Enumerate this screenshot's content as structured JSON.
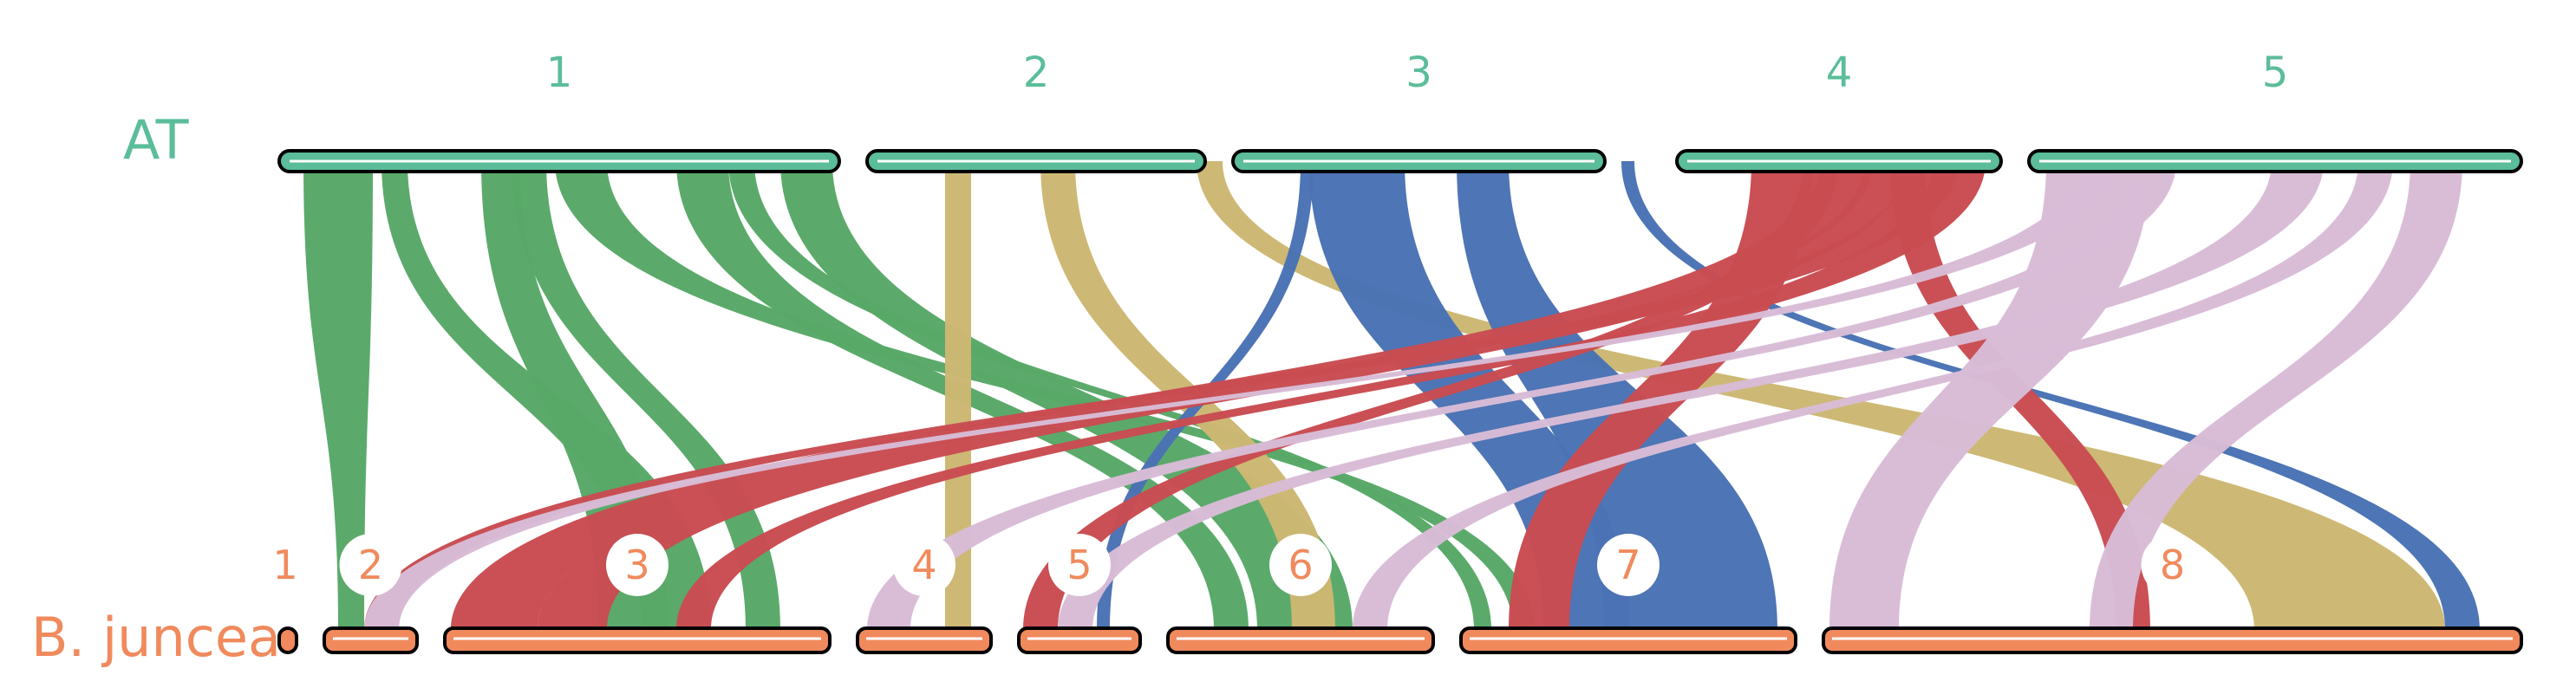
{
  "genomes": {
    "top": {
      "label": "AT",
      "color": "#5bbd99",
      "chromosomes": [
        {
          "id": "1",
          "label": "1"
        },
        {
          "id": "2",
          "label": "2"
        },
        {
          "id": "3",
          "label": "3"
        },
        {
          "id": "4",
          "label": "4"
        },
        {
          "id": "5",
          "label": "5"
        }
      ]
    },
    "bottom": {
      "label": "B. juncea",
      "color": "#f08a5d",
      "chromosomes": [
        {
          "id": "1",
          "label": "1"
        },
        {
          "id": "2",
          "label": "2"
        },
        {
          "id": "3",
          "label": "3"
        },
        {
          "id": "4",
          "label": "4"
        },
        {
          "id": "5",
          "label": "5"
        },
        {
          "id": "6",
          "label": "6"
        },
        {
          "id": "7",
          "label": "7"
        },
        {
          "id": "8",
          "label": "8"
        }
      ]
    }
  },
  "link_colors": {
    "1": "#58a868",
    "2": "#ccb872",
    "3": "#4a72b4",
    "4": "#c94d52",
    "5": "#d8bcd6"
  },
  "links": [
    {
      "source": "1",
      "target": "2"
    },
    {
      "source": "1",
      "target": "3"
    },
    {
      "source": "1",
      "target": "3"
    },
    {
      "source": "1",
      "target": "3"
    },
    {
      "source": "1",
      "target": "6"
    },
    {
      "source": "1",
      "target": "6"
    },
    {
      "source": "1",
      "target": "7"
    },
    {
      "source": "1",
      "target": "7"
    },
    {
      "source": "2",
      "target": "4"
    },
    {
      "source": "2",
      "target": "6"
    },
    {
      "source": "2",
      "target": "8"
    },
    {
      "source": "3",
      "target": "5"
    },
    {
      "source": "3",
      "target": "7"
    },
    {
      "source": "3",
      "target": "7"
    },
    {
      "source": "3",
      "target": "8"
    },
    {
      "source": "4",
      "target": "2"
    },
    {
      "source": "4",
      "target": "3"
    },
    {
      "source": "4",
      "target": "3"
    },
    {
      "source": "4",
      "target": "3"
    },
    {
      "source": "4",
      "target": "5"
    },
    {
      "source": "4",
      "target": "7"
    },
    {
      "source": "4",
      "target": "8"
    },
    {
      "source": "5",
      "target": "2"
    },
    {
      "source": "5",
      "target": "4"
    },
    {
      "source": "5",
      "target": "5"
    },
    {
      "source": "5",
      "target": "6"
    },
    {
      "source": "5",
      "target": "8"
    },
    {
      "source": "5",
      "target": "8"
    }
  ]
}
